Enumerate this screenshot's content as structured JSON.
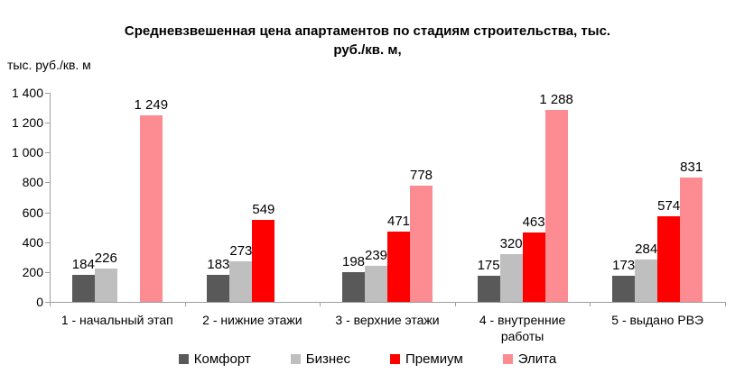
{
  "title": {
    "lines": [
      "Средневзвешенная цена апартаментов по стадиям строительства, тыс.",
      "руб./кв. м,"
    ]
  },
  "axis_unit_label": "тыс. руб./кв. м",
  "chart_data": {
    "type": "bar",
    "title": "Средневзвешенная цена апартаментов по стадиям строительства, тыс. руб./кв. м,",
    "ylabel": "тыс. руб./кв. м",
    "xlabel": "",
    "categories": [
      "1 - начальный этап",
      "2 - нижние этажи",
      "3 - верхние этажи",
      "4 - внутренние работы",
      "5 - выдано РВЭ"
    ],
    "series": [
      {
        "name": "Комфорт",
        "color": "#595959",
        "values": [
          184,
          183,
          198,
          175,
          173
        ]
      },
      {
        "name": "Бизнес",
        "color": "#bfbfbf",
        "values": [
          226,
          273,
          239,
          320,
          284
        ]
      },
      {
        "name": "Премиум",
        "color": "#fe0000",
        "values": [
          null,
          549,
          471,
          463,
          574
        ]
      },
      {
        "name": "Элита",
        "color": "#fd8c92",
        "values": [
          1249,
          null,
          778,
          1288,
          831
        ]
      }
    ],
    "ylim": [
      0,
      1400
    ],
    "ytick_step": 200,
    "ytick_labels": [
      "0",
      "200",
      "400",
      "600",
      "800",
      "1 000",
      "1 200",
      "1 400"
    ],
    "grid": false,
    "legend_position": "bottom",
    "value_labels_shown": true,
    "number_format": "space-thousands",
    "axis_color": "#9e9e9e"
  }
}
